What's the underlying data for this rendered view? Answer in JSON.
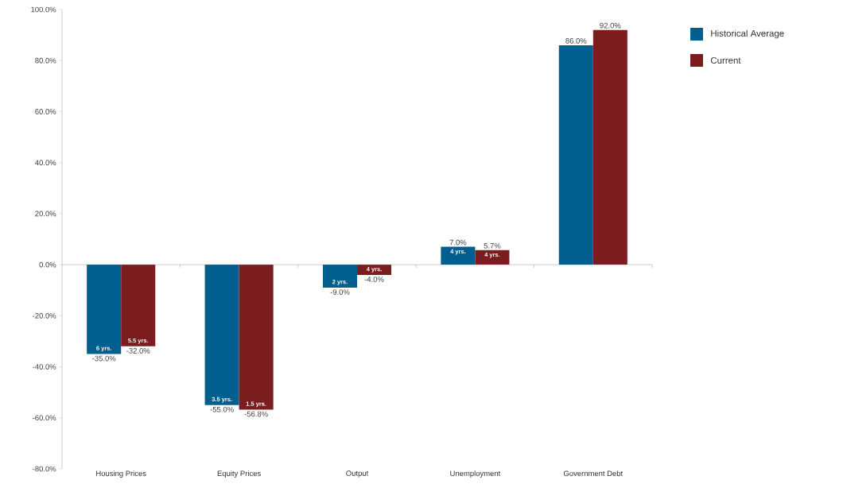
{
  "chart_data": {
    "type": "bar",
    "categories": [
      "Housing Prices",
      "Equity Prices",
      "Output",
      "Unemployment",
      "Government Debt"
    ],
    "series": [
      {
        "name": "Historical Average",
        "color": "#005f8f",
        "values": [
          -35.0,
          -55.0,
          -9.0,
          7.0,
          86.0
        ],
        "value_labels": [
          "-35.0%",
          "-55.0%",
          "-9.0%",
          "7.0%",
          "86.0%"
        ]
      },
      {
        "name": "Current",
        "color": "#7b1c1f",
        "values": [
          -32.0,
          -56.8,
          -4.0,
          5.7,
          92.0
        ],
        "value_labels": [
          "-32.0%",
          "-56.8%",
          "-4.0%",
          "5.7%",
          "92.0%"
        ]
      }
    ],
    "annotations": [
      {
        "text": "6 yrs.",
        "x": "Housing Prices",
        "y": -35.0
      },
      {
        "text": "5.5 yrs.",
        "x": "Housing Prices",
        "y": -32.0
      },
      {
        "text": "3.5 yrs.",
        "x": "Equity Prices",
        "y": -55.0
      },
      {
        "text": "1.5 yrs.",
        "x": "Equity Prices",
        "y": -56.8
      },
      {
        "text": "2 yrs.",
        "x": "Output",
        "y": -9.0
      },
      {
        "text": "4 yrs.",
        "x": "Output",
        "y": -4.0
      },
      {
        "text": "4 yrs.",
        "x": "Unemployment",
        "y": 7.0
      },
      {
        "text": "4 yrs.",
        "x": "Unemployment",
        "y": 5.7
      }
    ],
    "ylim": [
      -80,
      100
    ],
    "yticks": [
      {
        "value": -80,
        "label": "-80.0%"
      },
      {
        "value": -60,
        "label": "-60.0%"
      },
      {
        "value": -40,
        "label": "-40.0%"
      },
      {
        "value": -20,
        "label": "-20.0%"
      },
      {
        "value": 0,
        "label": "0.0%"
      },
      {
        "value": 20,
        "label": "20.0%"
      },
      {
        "value": 40,
        "label": "40.0%"
      },
      {
        "value": 60,
        "label": "60.0%"
      },
      {
        "value": 80,
        "label": "80.0%"
      },
      {
        "value": 100,
        "label": "100.0%"
      }
    ],
    "legend": "top right"
  }
}
